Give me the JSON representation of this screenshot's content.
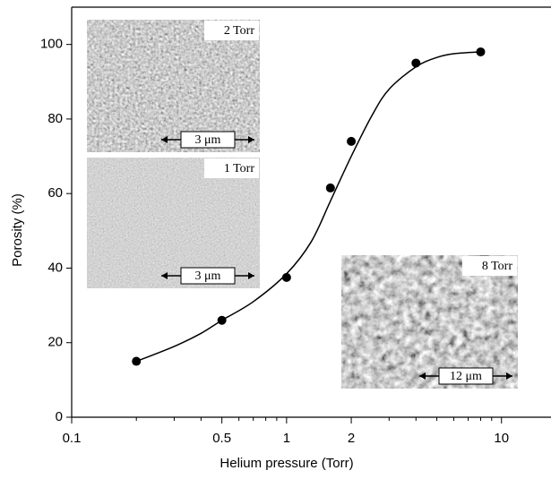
{
  "chart_data": {
    "type": "scatter",
    "xlabel": "Helium pressure (Torr)",
    "ylabel": "Porosity (%)",
    "xscale": "log",
    "xlim": [
      0.1,
      17
    ],
    "ylim": [
      0,
      110
    ],
    "xticks": [
      0.1,
      0.5,
      1,
      2,
      10
    ],
    "xminorticks": [
      0.2,
      0.3,
      0.4,
      0.6,
      0.7,
      0.8,
      0.9,
      3,
      4,
      5,
      6,
      7,
      8,
      9
    ],
    "yticks": [
      0,
      20,
      40,
      60,
      80,
      100
    ],
    "color": "#000000",
    "x": [
      0.2,
      0.5,
      1,
      1.6,
      2,
      4,
      8
    ],
    "values": [
      15,
      26,
      37.5,
      61.5,
      74,
      95,
      98
    ],
    "fit": {
      "x": [
        0.2,
        0.3,
        0.4,
        0.5,
        0.7,
        1,
        1.3,
        1.6,
        2,
        2.5,
        3,
        4,
        5,
        6,
        8
      ],
      "values": [
        15,
        19,
        22.5,
        26,
        31,
        38.5,
        47,
        58,
        70,
        81,
        88,
        94,
        96.5,
        97.5,
        98
      ]
    },
    "insets": [
      {
        "label": "2 Torr",
        "scale": "3 μm"
      },
      {
        "label": "1 Torr",
        "scale": "3 μm"
      },
      {
        "label": "8 Torr",
        "scale": "12 μm"
      }
    ]
  }
}
